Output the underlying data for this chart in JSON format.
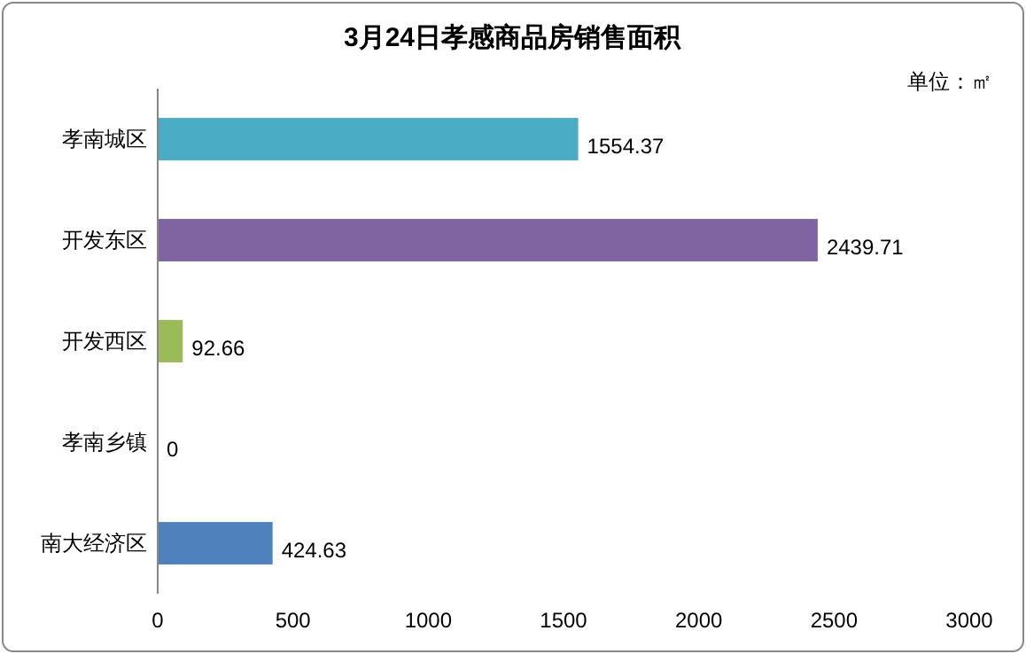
{
  "chart_data": {
    "type": "bar",
    "orientation": "horizontal",
    "title": "3月24日孝感商品房销售面积",
    "annotations": [
      "单位：㎡"
    ],
    "categories": [
      "孝南城区",
      "开发东区",
      "开发西区",
      "孝南乡镇",
      "南大经济区"
    ],
    "values": [
      1554.37,
      2439.71,
      92.66,
      0,
      424.63
    ],
    "colors": [
      "#4bacc6",
      "#8064a2",
      "#9bbb59",
      "#f79646",
      "#4f81bd"
    ],
    "xlim": [
      0,
      3000
    ],
    "xticks": [
      0,
      500,
      1000,
      1500,
      2000,
      2500,
      3000
    ],
    "data_labels": true,
    "grid": false
  }
}
